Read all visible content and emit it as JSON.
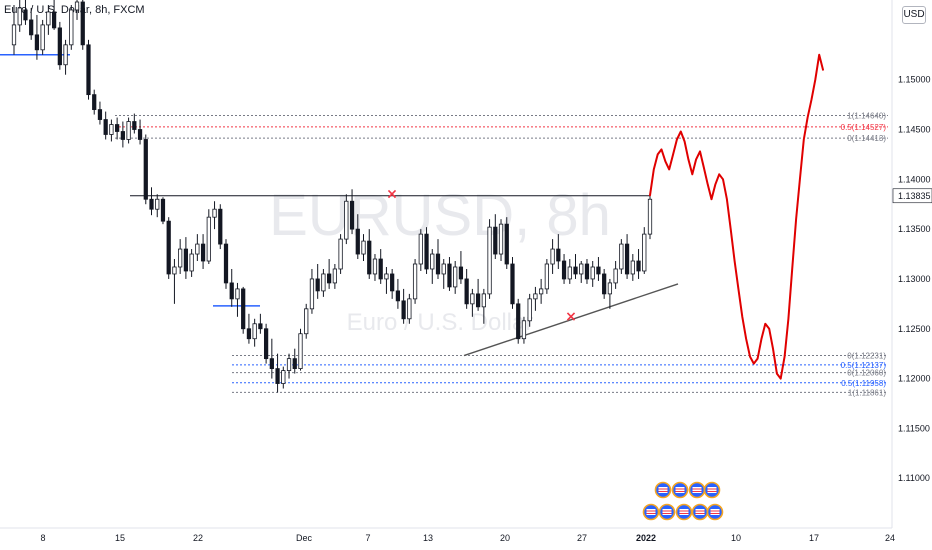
{
  "header": {
    "symbol_line": "Euro / U.S. Dollar, 8h, FXCM"
  },
  "currency_button": "USD",
  "watermark": {
    "symbol": "EURUSD, 8h",
    "description": "Euro / U.S. Dollar"
  },
  "colors": {
    "up_candle": "#ffffff",
    "down_candle": "#131722",
    "projection": "#e00000",
    "fib_red": "#f23645",
    "fib_blue": "#2962ff",
    "fib_gray": "#787b86",
    "trendline": "#555555",
    "resistance": "#131722",
    "support_blue": "#2962ff",
    "marker": "#f23645"
  },
  "chart_data": {
    "type": "candlestick",
    "symbol": "EURUSD",
    "timeframe": "8h",
    "ylim": [
      1.105,
      1.158
    ],
    "yticks": [
      "1.15000",
      "1.14500",
      "1.14000",
      "1.13500",
      "1.13000",
      "1.12500",
      "1.12000",
      "1.11500",
      "1.11000"
    ],
    "xticks": [
      "8",
      "15",
      "22",
      "Dec",
      "7",
      "13",
      "20",
      "27",
      "2022",
      "10",
      "17",
      "24"
    ],
    "price_tags": [
      {
        "label": "1.13835",
        "value": 1.13835
      }
    ],
    "fib_upper": [
      {
        "label": "1(1.14640)",
        "value": 1.1464,
        "color": "gray"
      },
      {
        "label": "0.5(1.14527)",
        "value": 1.14527,
        "color": "red"
      },
      {
        "label": "0(1.14413)",
        "value": 1.14413,
        "color": "gray"
      }
    ],
    "fib_lower": [
      {
        "label": "0(1.12231)",
        "value": 1.12231,
        "color": "gray"
      },
      {
        "label": "0.5(1.12137)",
        "value": 1.12137,
        "color": "blue"
      },
      {
        "label": "0(1.12060)",
        "value": 1.1206,
        "color": "gray"
      },
      {
        "label": "0.5(1.11958)",
        "value": 1.11958,
        "color": "blue"
      },
      {
        "label": "1(1.11861)",
        "value": 1.11861,
        "color": "gray"
      }
    ],
    "resistance_level": 1.13835,
    "trendline": {
      "from": 1.12231,
      "to": 1.1295
    },
    "markers": [
      {
        "symbol": "×",
        "value": 1.1385
      },
      {
        "symbol": "×",
        "value": 1.1262
      }
    ],
    "candles": [
      [
        1.1535,
        1.1575,
        1.1525,
        1.1555
      ],
      [
        1.1555,
        1.158,
        1.1548,
        1.1572
      ],
      [
        1.157,
        1.1585,
        1.1555,
        1.156
      ],
      [
        1.156,
        1.1572,
        1.154,
        1.1545
      ],
      [
        1.1545,
        1.1565,
        1.152,
        1.153
      ],
      [
        1.153,
        1.156,
        1.1525,
        1.1555
      ],
      [
        1.1555,
        1.1575,
        1.1545,
        1.1568
      ],
      [
        1.1568,
        1.158,
        1.155,
        1.1552
      ],
      [
        1.1552,
        1.1558,
        1.151,
        1.1515
      ],
      [
        1.1515,
        1.154,
        1.1505,
        1.1535
      ],
      [
        1.1535,
        1.1575,
        1.153,
        1.157
      ],
      [
        1.157,
        1.1582,
        1.156,
        1.1578
      ],
      [
        1.1578,
        1.158,
        1.153,
        1.1535
      ],
      [
        1.1535,
        1.154,
        1.148,
        1.1485
      ],
      [
        1.1485,
        1.149,
        1.1465,
        1.147
      ],
      [
        1.147,
        1.1478,
        1.1455,
        1.146
      ],
      [
        1.146,
        1.1468,
        1.144,
        1.1445
      ],
      [
        1.1445,
        1.146,
        1.1438,
        1.1455
      ],
      [
        1.1455,
        1.1462,
        1.144,
        1.1448
      ],
      [
        1.1448,
        1.1458,
        1.1432,
        1.144
      ],
      [
        1.144,
        1.1462,
        1.1436,
        1.1458
      ],
      [
        1.1458,
        1.1466,
        1.1446,
        1.145
      ],
      [
        1.145,
        1.146,
        1.1435,
        1.144
      ],
      [
        1.144,
        1.1445,
        1.1375,
        1.138
      ],
      [
        1.138,
        1.1392,
        1.1364,
        1.137
      ],
      [
        1.137,
        1.1385,
        1.1362,
        1.138
      ],
      [
        1.138,
        1.1382,
        1.1355,
        1.1358
      ],
      [
        1.1358,
        1.1362,
        1.13,
        1.1305
      ],
      [
        1.1305,
        1.132,
        1.1275,
        1.1312
      ],
      [
        1.1312,
        1.134,
        1.1305,
        1.133
      ],
      [
        1.133,
        1.1342,
        1.13,
        1.1308
      ],
      [
        1.1308,
        1.133,
        1.1302,
        1.1325
      ],
      [
        1.1325,
        1.1345,
        1.1318,
        1.1335
      ],
      [
        1.1335,
        1.1345,
        1.131,
        1.1318
      ],
      [
        1.1318,
        1.137,
        1.1315,
        1.1362
      ],
      [
        1.1362,
        1.1378,
        1.135,
        1.137
      ],
      [
        1.137,
        1.1375,
        1.133,
        1.1335
      ],
      [
        1.1335,
        1.134,
        1.129,
        1.1296
      ],
      [
        1.1296,
        1.131,
        1.1272,
        1.128
      ],
      [
        1.128,
        1.1296,
        1.1262,
        1.129
      ],
      [
        1.129,
        1.1292,
        1.1245,
        1.125
      ],
      [
        1.125,
        1.1265,
        1.1235,
        1.124
      ],
      [
        1.124,
        1.126,
        1.1232,
        1.1255
      ],
      [
        1.1255,
        1.1265,
        1.1245,
        1.125
      ],
      [
        1.125,
        1.1255,
        1.1215,
        1.122
      ],
      [
        1.122,
        1.124,
        1.12,
        1.121
      ],
      [
        1.121,
        1.1225,
        1.1186,
        1.1195
      ],
      [
        1.1195,
        1.1212,
        1.119,
        1.1208
      ],
      [
        1.1208,
        1.1225,
        1.12,
        1.122
      ],
      [
        1.122,
        1.123,
        1.1205,
        1.121
      ],
      [
        1.121,
        1.125,
        1.1208,
        1.1245
      ],
      [
        1.1245,
        1.1275,
        1.124,
        1.127
      ],
      [
        1.127,
        1.131,
        1.1265,
        1.13
      ],
      [
        1.13,
        1.1315,
        1.128,
        1.1288
      ],
      [
        1.1288,
        1.131,
        1.1282,
        1.1305
      ],
      [
        1.1305,
        1.132,
        1.129,
        1.1296
      ],
      [
        1.1296,
        1.1315,
        1.129,
        1.131
      ],
      [
        1.131,
        1.1345,
        1.1305,
        1.134
      ],
      [
        1.134,
        1.1385,
        1.1335,
        1.1378
      ],
      [
        1.1378,
        1.139,
        1.1345,
        1.135
      ],
      [
        1.135,
        1.1365,
        1.132,
        1.1325
      ],
      [
        1.1325,
        1.1345,
        1.1318,
        1.1338
      ],
      [
        1.1338,
        1.135,
        1.13,
        1.1305
      ],
      [
        1.1305,
        1.1325,
        1.1298,
        1.132
      ],
      [
        1.132,
        1.133,
        1.1295,
        1.13
      ],
      [
        1.13,
        1.1312,
        1.1285,
        1.1305
      ],
      [
        1.1305,
        1.131,
        1.128,
        1.1288
      ],
      [
        1.1288,
        1.13,
        1.127,
        1.1278
      ],
      [
        1.1278,
        1.129,
        1.1255,
        1.126
      ],
      [
        1.126,
        1.1285,
        1.1255,
        1.128
      ],
      [
        1.128,
        1.132,
        1.1275,
        1.1315
      ],
      [
        1.1315,
        1.135,
        1.1308,
        1.1345
      ],
      [
        1.1345,
        1.1352,
        1.1305,
        1.131
      ],
      [
        1.131,
        1.133,
        1.1295,
        1.1325
      ],
      [
        1.1325,
        1.134,
        1.13,
        1.1305
      ],
      [
        1.1305,
        1.132,
        1.129,
        1.1315
      ],
      [
        1.1315,
        1.1322,
        1.1288,
        1.1292
      ],
      [
        1.1292,
        1.1318,
        1.1285,
        1.1312
      ],
      [
        1.1312,
        1.1328,
        1.1295,
        1.13
      ],
      [
        1.13,
        1.131,
        1.127,
        1.1275
      ],
      [
        1.1275,
        1.129,
        1.1262,
        1.1285
      ],
      [
        1.1285,
        1.13,
        1.1268,
        1.1272
      ],
      [
        1.1272,
        1.129,
        1.1255,
        1.1285
      ],
      [
        1.1285,
        1.136,
        1.128,
        1.1352
      ],
      [
        1.1352,
        1.1365,
        1.132,
        1.1325
      ],
      [
        1.1325,
        1.136,
        1.1318,
        1.1355
      ],
      [
        1.1355,
        1.1362,
        1.131,
        1.1315
      ],
      [
        1.1315,
        1.1322,
        1.127,
        1.1275
      ],
      [
        1.1275,
        1.128,
        1.1235,
        1.124
      ],
      [
        1.124,
        1.1262,
        1.1235,
        1.1258
      ],
      [
        1.1258,
        1.1285,
        1.1252,
        1.128
      ],
      [
        1.128,
        1.1292,
        1.1268,
        1.1285
      ],
      [
        1.1285,
        1.13,
        1.1275,
        1.129
      ],
      [
        1.129,
        1.132,
        1.1285,
        1.1315
      ],
      [
        1.1315,
        1.134,
        1.1305,
        1.133
      ],
      [
        1.133,
        1.1345,
        1.131,
        1.1318
      ],
      [
        1.1318,
        1.1325,
        1.1295,
        1.13
      ],
      [
        1.13,
        1.132,
        1.1295,
        1.1312
      ],
      [
        1.1312,
        1.1325,
        1.13,
        1.1305
      ],
      [
        1.1305,
        1.1318,
        1.1296,
        1.1315
      ],
      [
        1.1315,
        1.132,
        1.1295,
        1.13
      ],
      [
        1.13,
        1.1318,
        1.1292,
        1.1312
      ],
      [
        1.1312,
        1.1322,
        1.1298,
        1.1305
      ],
      [
        1.1305,
        1.131,
        1.128,
        1.1285
      ],
      [
        1.1285,
        1.13,
        1.127,
        1.1296
      ],
      [
        1.1296,
        1.1318,
        1.129,
        1.131
      ],
      [
        1.131,
        1.134,
        1.1305,
        1.1335
      ],
      [
        1.1335,
        1.1345,
        1.13,
        1.1305
      ],
      [
        1.1305,
        1.1325,
        1.1298,
        1.1318
      ],
      [
        1.1318,
        1.133,
        1.13,
        1.1308
      ],
      [
        1.1308,
        1.1352,
        1.1305,
        1.1345
      ],
      [
        1.1345,
        1.1385,
        1.134,
        1.138
      ]
    ],
    "projection_path": [
      1.1384,
      1.141,
      1.1425,
      1.143,
      1.1418,
      1.141,
      1.1425,
      1.144,
      1.1448,
      1.1438,
      1.142,
      1.1405,
      1.142,
      1.1428,
      1.1412,
      1.1395,
      1.138,
      1.1395,
      1.1405,
      1.14,
      1.138,
      1.135,
      1.1318,
      1.129,
      1.1262,
      1.124,
      1.1222,
      1.1215,
      1.122,
      1.124,
      1.1255,
      1.125,
      1.123,
      1.1205,
      1.12,
      1.1222,
      1.126,
      1.131,
      1.136,
      1.14,
      1.144,
      1.1462,
      1.148,
      1.15,
      1.1525,
      1.151
    ]
  }
}
